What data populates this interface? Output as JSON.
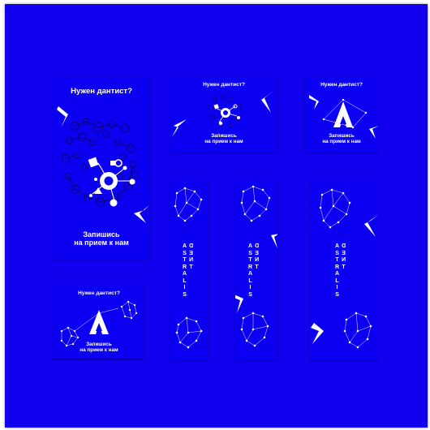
{
  "colors": {
    "canvas": "#1100ee",
    "card": "#0c00f2",
    "ink": "#ffffff"
  },
  "cards": {
    "tall": {
      "title": "Нужен дантист?",
      "cta_line1": "Запишись",
      "cta_line2": "на прием к нам"
    },
    "square_a": {
      "title": "Нужен дантист?",
      "cta_line1": "Запишись",
      "cta_line2": "на прием к нам"
    },
    "square_b": {
      "title": "Нужен дантист?",
      "cta_line1": "Запишись",
      "cta_line2": "на прием к нам"
    },
    "wide": {
      "title": "Нужен дантист?",
      "cta_line1": "Запишись",
      "cta_line2": "на прием к нам"
    }
  },
  "brand": {
    "col1": [
      "A",
      "S",
      "T",
      "R",
      "A",
      "L",
      "I",
      "S"
    ],
    "col2": [
      "D",
      "E",
      "N",
      "T"
    ]
  },
  "icons": {
    "star": "shooting-star-icon",
    "logo": "astralis-a-logo-icon",
    "tooth": "tooth-constellation-icon",
    "molecule": "molecule-network-icon"
  }
}
